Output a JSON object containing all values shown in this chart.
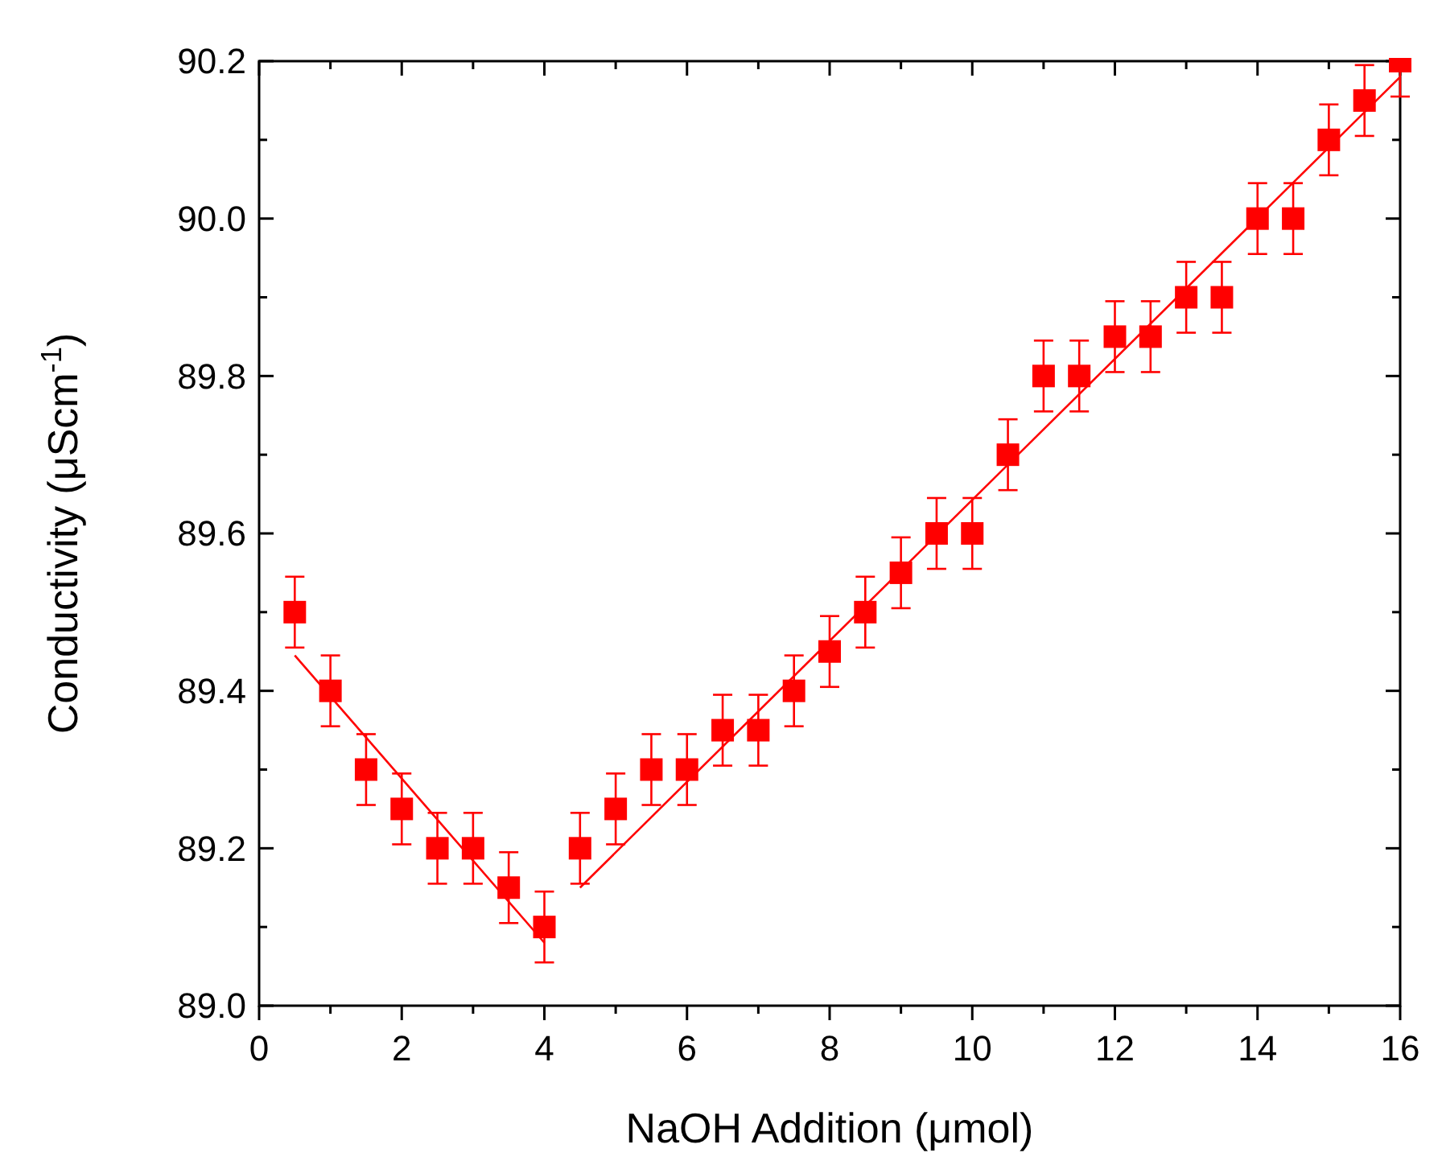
{
  "chart_data": {
    "type": "scatter",
    "xlabel": "NaOH Addition (μmol)",
    "ylabel": "Conductivity (μScm$^{-1}$)",
    "grid": false,
    "xlim": [
      0,
      16
    ],
    "ylim": [
      89.0,
      90.2
    ],
    "xticks": [
      0,
      {
        "value": 1,
        "label": null
      },
      2,
      {
        "value": 3,
        "label": null
      },
      4,
      {
        "value": 5,
        "label": null
      },
      6,
      {
        "value": 7,
        "label": null
      },
      8,
      {
        "value": 9,
        "label": null
      },
      10,
      {
        "value": 11,
        "label": null
      },
      12,
      {
        "value": 13,
        "label": null
      },
      14,
      {
        "value": 15,
        "label": null
      },
      16
    ],
    "yticks": [
      {
        "value": 89.0,
        "label": "89.0"
      },
      {
        "value": 89.1,
        "label": null
      },
      {
        "value": 89.2,
        "label": "89.2"
      },
      {
        "value": 89.3,
        "label": null
      },
      {
        "value": 89.4,
        "label": "89.4"
      },
      {
        "value": 89.5,
        "label": null
      },
      {
        "value": 89.6,
        "label": "89.6"
      },
      {
        "value": 89.7,
        "label": null
      },
      {
        "value": 89.8,
        "label": "89.8"
      },
      {
        "value": 89.9,
        "label": null
      },
      {
        "value": 90.0,
        "label": "90.0"
      },
      {
        "value": 90.1,
        "label": null
      },
      {
        "value": 90.2,
        "label": "90.2"
      }
    ],
    "series": [
      {
        "marker": "square",
        "color": "#ff0000",
        "x": [
          0.5,
          1,
          1.5,
          2,
          2.5,
          3,
          3.5,
          4,
          4.5,
          5,
          5.5,
          6,
          6.5,
          7,
          7.5,
          8,
          8.5,
          9,
          9.5,
          10,
          10.5,
          11,
          11.5,
          12,
          12.5,
          13,
          13.5,
          14,
          14.5,
          15,
          15.5,
          16
        ],
        "values": [
          89.5,
          89.4,
          89.3,
          89.25,
          89.2,
          89.2,
          89.15,
          89.1,
          89.2,
          89.25,
          89.3,
          89.3,
          89.35,
          89.35,
          89.4,
          89.45,
          89.5,
          89.55,
          89.6,
          89.6,
          89.7,
          89.8,
          89.8,
          89.85,
          89.85,
          89.9,
          89.9,
          90.0,
          90.0,
          90.1,
          90.15,
          90.2
        ],
        "errors": [
          0.045,
          0.045,
          0.045,
          0.045,
          0.045,
          0.045,
          0.045,
          0.045,
          0.045,
          0.045,
          0.045,
          0.045,
          0.045,
          0.045,
          0.045,
          0.045,
          0.045,
          0.045,
          0.045,
          0.045,
          0.045,
          0.045,
          0.045,
          0.045,
          0.045,
          0.045,
          0.045,
          0.045,
          0.045,
          0.045,
          0.045,
          [
            90.155,
            90.2
          ]
        ]
      },
      {
        "type": "line",
        "marker": "none",
        "color": "#ff0000",
        "x": [
          0.5,
          4
        ],
        "values": [
          89.445,
          89.08
        ]
      },
      {
        "type": "line",
        "marker": "none",
        "color": "#ff0000",
        "x": [
          4.5,
          16
        ],
        "values": [
          89.15,
          90.18
        ]
      }
    ]
  }
}
